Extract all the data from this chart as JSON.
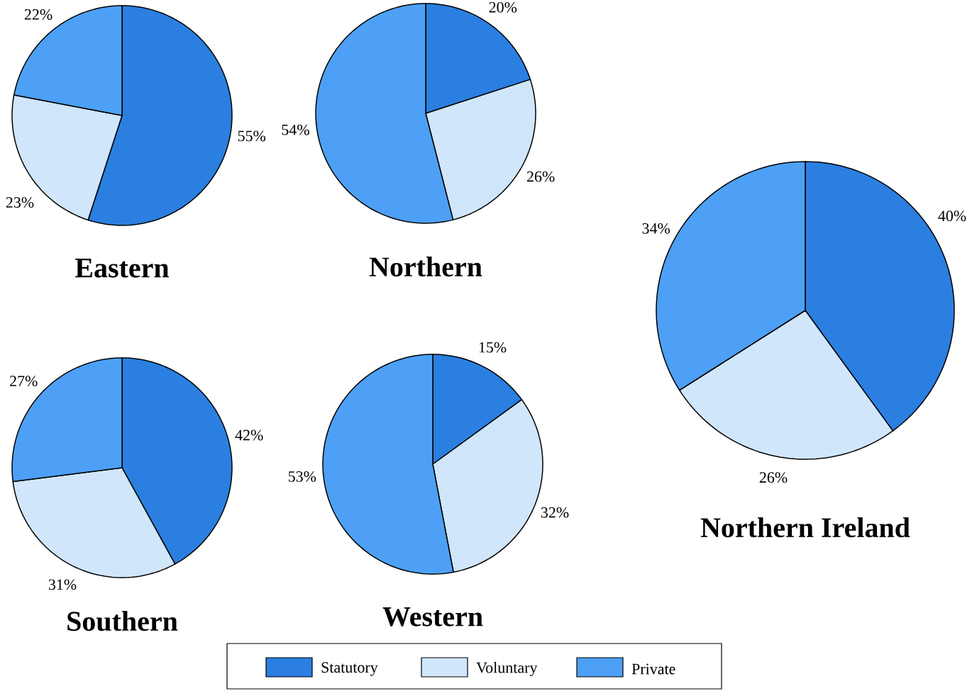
{
  "chart_data": [
    {
      "type": "pie",
      "title": "Eastern",
      "categories": [
        "Statutory",
        "Voluntary",
        "Private"
      ],
      "values": [
        55,
        23,
        22
      ],
      "value_labels": [
        "55%",
        "23%",
        "22%"
      ],
      "colors": [
        "#2a7fe0",
        "#cfe6fb",
        "#4da0f5"
      ],
      "legend": "bottom"
    },
    {
      "type": "pie",
      "title": "Northern",
      "values": [
        20,
        26,
        54
      ],
      "value_labels": [
        "20%",
        "26%",
        "54%"
      ],
      "colors": [
        "#2a7fe0",
        "#cfe6fb",
        "#4da0f5"
      ]
    },
    {
      "type": "pie",
      "title": "Southern",
      "values": [
        42,
        31,
        27
      ],
      "value_labels": [
        "42%",
        "31%",
        "27%"
      ],
      "colors": [
        "#2a7fe0",
        "#cfe6fb",
        "#4da0f5"
      ]
    },
    {
      "type": "pie",
      "title": "Western",
      "values": [
        15,
        32,
        53
      ],
      "value_labels": [
        "15%",
        "32%",
        "53%"
      ],
      "colors": [
        "#2a7fe0",
        "#cfe6fb",
        "#4da0f5"
      ]
    },
    {
      "type": "pie",
      "title": "Northern Ireland",
      "values": [
        40,
        26,
        34
      ],
      "value_labels": [
        "40%",
        "26%",
        "34%"
      ],
      "colors": [
        "#2a7fe0",
        "#cfe6fb",
        "#4da0f5"
      ]
    }
  ]
}
